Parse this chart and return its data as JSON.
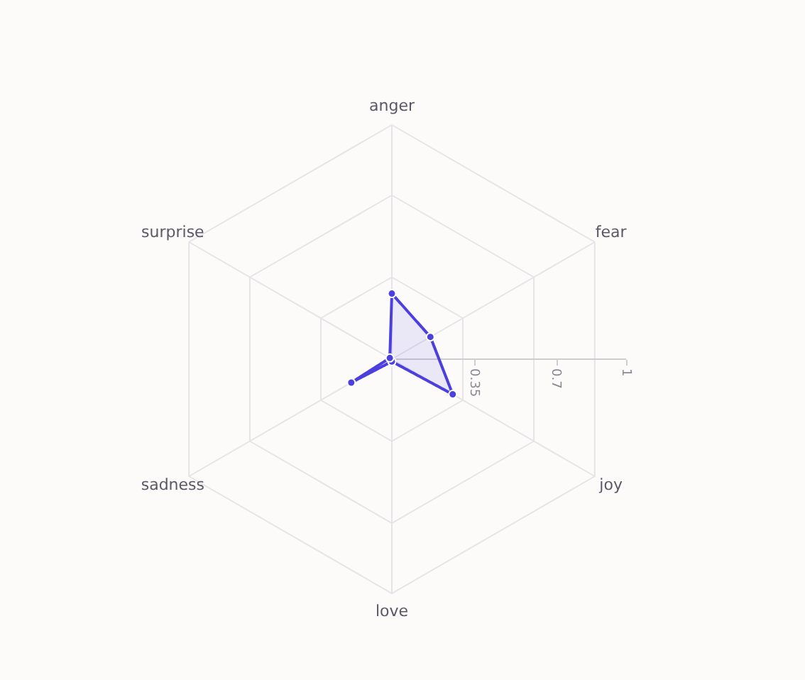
{
  "chart_data": {
    "type": "radar",
    "categories": [
      "anger",
      "fear",
      "joy",
      "love",
      "sadness",
      "surprise"
    ],
    "series": [
      {
        "color": "#4b3fe0",
        "values": [
          0.28,
          0.19,
          0.3,
          0.01,
          0.2,
          0.01
        ]
      }
    ],
    "ylim": [
      0,
      1
    ],
    "yticks": [
      0.35,
      0.7,
      1
    ],
    "grid": true,
    "marker": "circle",
    "line_style": "solid"
  }
}
